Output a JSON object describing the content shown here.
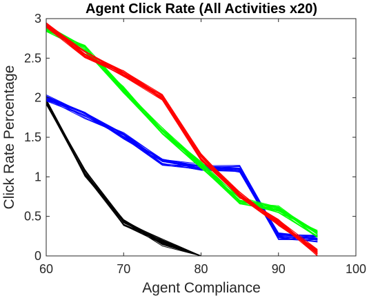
{
  "chart_data": {
    "type": "line",
    "title": "Agent Click Rate  (All Activities x20)",
    "xlabel": "Agent Compliance",
    "ylabel": "Click Rate Percentage",
    "xlim": [
      60,
      100
    ],
    "ylim": [
      0,
      3
    ],
    "xticks": [
      "60",
      "70",
      "80",
      "90",
      "100"
    ],
    "yticks": [
      "0",
      "0.5",
      "1",
      "1.5",
      "2",
      "2.5",
      "3"
    ],
    "grid": false,
    "legend": "none",
    "repeats_per_series": 20,
    "series": [
      {
        "color": "#000000",
        "x": [
          60,
          65,
          70,
          75,
          80
        ],
        "y": [
          1.95,
          1.05,
          0.42,
          0.17,
          0.0
        ]
      },
      {
        "color": "#0000ff",
        "x": [
          60,
          65,
          70,
          75,
          80,
          85,
          90,
          95
        ],
        "y": [
          2.0,
          1.78,
          1.52,
          1.18,
          1.12,
          1.1,
          0.25,
          0.22
        ]
      },
      {
        "color": "#00ff00",
        "x": [
          60,
          65,
          70,
          75,
          80,
          85,
          90,
          95
        ],
        "y": [
          2.88,
          2.62,
          2.1,
          1.58,
          1.15,
          0.7,
          0.59,
          0.28
        ]
      },
      {
        "color": "#ff0000",
        "x": [
          60,
          65,
          70,
          75,
          80,
          85,
          90,
          95
        ],
        "y": [
          2.92,
          2.55,
          2.3,
          2.0,
          1.25,
          0.78,
          0.42,
          0.04
        ]
      }
    ]
  }
}
